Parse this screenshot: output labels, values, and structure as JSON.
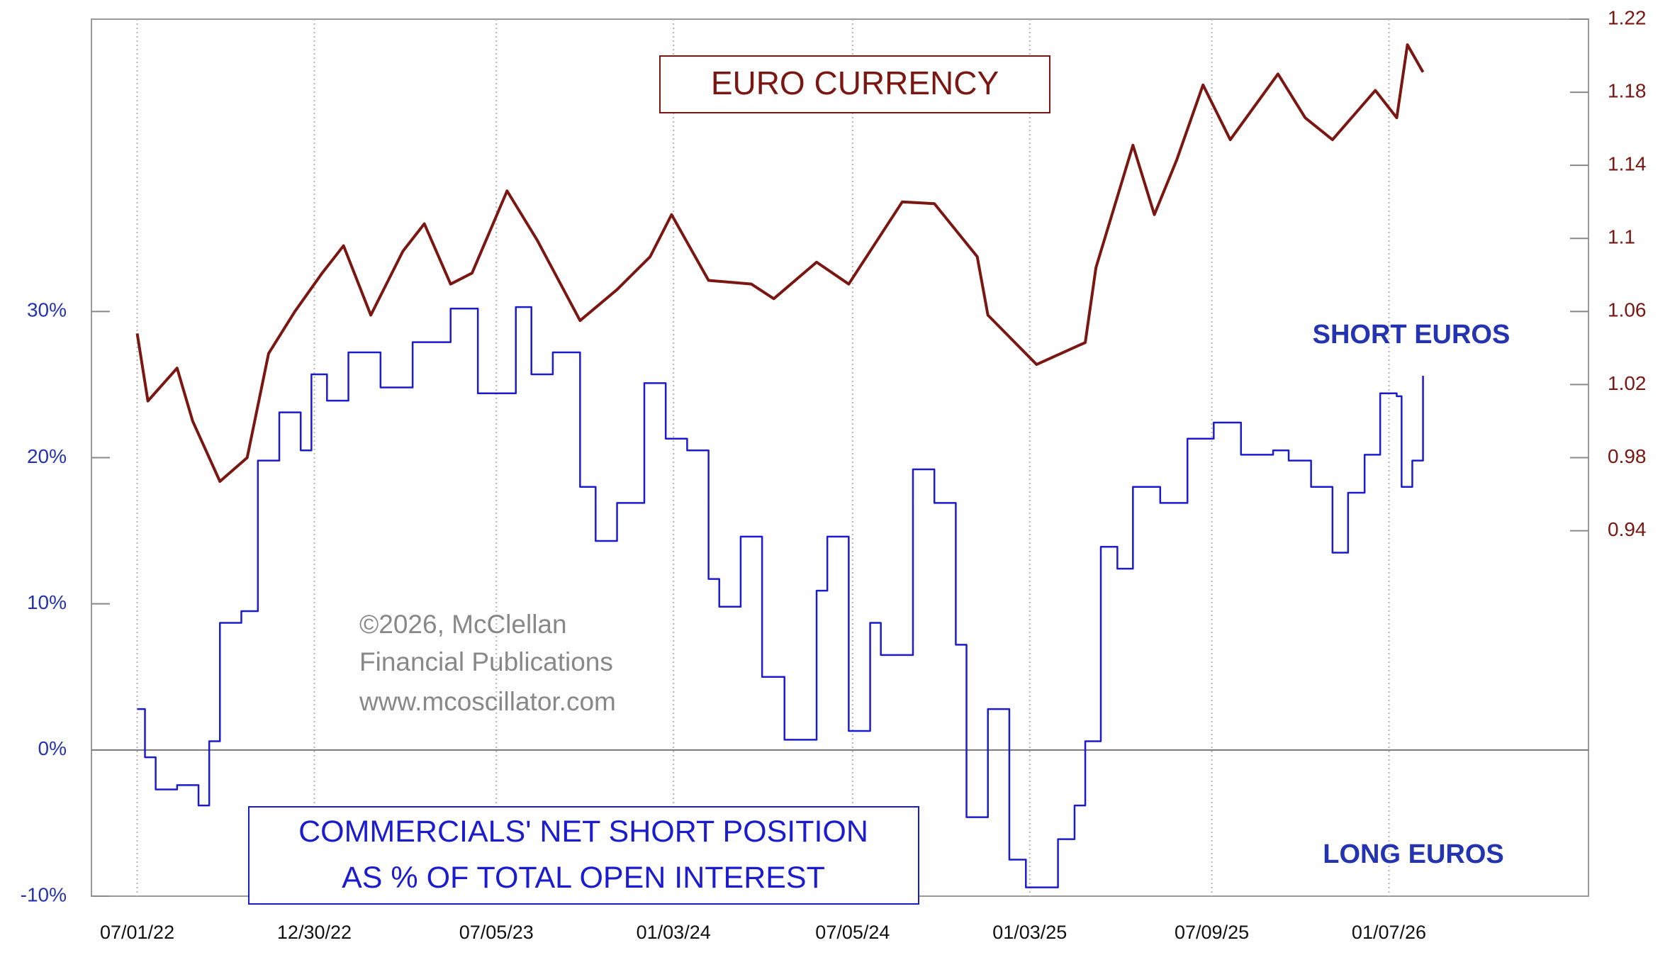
{
  "chart_data": {
    "type": "line",
    "xlim": [
      "2022-05-15",
      "2026-07-31"
    ],
    "xticks": [
      {
        "value": "2022-07-01",
        "label": "07/01/22"
      },
      {
        "value": "2022-12-30",
        "label": "12/30/22"
      },
      {
        "value": "2023-07-05",
        "label": "07/05/23"
      },
      {
        "value": "2024-01-03",
        "label": "01/03/24"
      },
      {
        "value": "2024-07-05",
        "label": "07/05/24"
      },
      {
        "value": "2025-01-03",
        "label": "01/03/25"
      },
      {
        "value": "2025-07-09",
        "label": "07/09/25"
      },
      {
        "value": "2026-01-07",
        "label": "01/07/26"
      }
    ],
    "ylim": [
      -10,
      50
    ],
    "yticks": [
      {
        "value": -10,
        "label": "-10%"
      },
      {
        "value": 0,
        "label": "0%"
      },
      {
        "value": 10,
        "label": "10%"
      },
      {
        "value": 20,
        "label": "20%"
      },
      {
        "value": 30,
        "label": "30%"
      }
    ],
    "y2lim": [
      0.74,
      1.22
    ],
    "y2ticks": [
      0.94,
      0.98,
      1.02,
      1.06,
      1.1,
      1.14,
      1.18,
      1.22
    ],
    "grid": true,
    "series": [
      {
        "name": "EURO CURRENCY",
        "color": "#7a1712",
        "axis": "y2",
        "x": [
          "2022-07-01",
          "2022-07-12",
          "2022-08-11",
          "2022-08-27",
          "2022-09-24",
          "2022-10-22",
          "2022-11-13",
          "2022-12-10",
          "2023-01-07",
          "2023-01-29",
          "2023-02-26",
          "2023-03-31",
          "2023-04-22",
          "2023-05-19",
          "2023-06-10",
          "2023-07-16",
          "2023-08-16",
          "2023-09-29",
          "2023-11-06",
          "2023-12-10",
          "2024-01-01",
          "2024-02-08",
          "2024-03-23",
          "2024-04-15",
          "2024-05-29",
          "2024-07-01",
          "2024-08-25",
          "2024-09-27",
          "2024-11-10",
          "2024-11-21",
          "2025-01-10",
          "2025-03-01",
          "2025-03-12",
          "2025-04-19",
          "2025-05-11",
          "2025-06-03",
          "2025-06-30",
          "2025-07-28",
          "2025-09-15",
          "2025-10-13",
          "2025-11-10",
          "2025-12-24",
          "2026-01-15",
          "2026-01-26",
          "2026-02-11"
        ],
        "values": [
          1.048,
          1.011,
          1.029,
          1.0,
          0.967,
          0.98,
          1.037,
          1.06,
          1.081,
          1.096,
          1.058,
          1.093,
          1.108,
          1.075,
          1.081,
          1.126,
          1.099,
          1.055,
          1.072,
          1.09,
          1.113,
          1.077,
          1.075,
          1.067,
          1.087,
          1.075,
          1.12,
          1.119,
          1.09,
          1.058,
          1.031,
          1.043,
          1.084,
          1.151,
          1.113,
          1.143,
          1.184,
          1.154,
          1.19,
          1.166,
          1.154,
          1.181,
          1.166,
          1.206,
          1.191
        ]
      },
      {
        "name": "COMMERCIALS' NET SHORT POSITION AS % OF TOTAL OPEN INTEREST",
        "color": "#1c1ccf",
        "axis": "y",
        "x": [
          "2022-07-01",
          "2022-07-09",
          "2022-07-20",
          "2022-08-11",
          "2022-09-02",
          "2022-09-13",
          "2022-09-24",
          "2022-10-16",
          "2022-11-02",
          "2022-11-24",
          "2022-12-16",
          "2022-12-27",
          "2023-01-12",
          "2023-02-03",
          "2023-03-08",
          "2023-04-10",
          "2023-05-19",
          "2023-06-16",
          "2023-07-25",
          "2023-08-10",
          "2023-09-01",
          "2023-09-29",
          "2023-10-15",
          "2023-11-06",
          "2023-12-04",
          "2023-12-26",
          "2024-01-17",
          "2024-02-08",
          "2024-02-19",
          "2024-03-12",
          "2024-04-03",
          "2024-04-26",
          "2024-05-29",
          "2024-06-09",
          "2024-07-01",
          "2024-07-23",
          "2024-08-03",
          "2024-09-05",
          "2024-09-27",
          "2024-10-19",
          "2024-10-30",
          "2024-11-21",
          "2024-12-13",
          "2024-12-30",
          "2025-02-01",
          "2025-02-18",
          "2025-03-01",
          "2025-03-17",
          "2025-04-03",
          "2025-04-19",
          "2025-05-17",
          "2025-06-14",
          "2025-07-11",
          "2025-08-08",
          "2025-09-10",
          "2025-09-26",
          "2025-10-19",
          "2025-11-10",
          "2025-11-26",
          "2025-12-13",
          "2025-12-29",
          "2026-01-15",
          "2026-01-20",
          "2026-01-31",
          "2026-02-11"
        ],
        "values": [
          2.8,
          -0.5,
          -2.7,
          -2.4,
          -3.8,
          0.6,
          8.7,
          9.5,
          19.8,
          23.1,
          20.5,
          25.7,
          23.9,
          27.2,
          24.8,
          27.9,
          30.2,
          24.4,
          30.3,
          25.7,
          27.2,
          18.0,
          14.3,
          16.9,
          25.1,
          21.3,
          20.5,
          11.7,
          9.8,
          14.6,
          5.0,
          0.7,
          10.9,
          14.6,
          1.3,
          8.7,
          6.5,
          19.2,
          16.9,
          7.2,
          -4.6,
          2.8,
          -7.5,
          -9.4,
          -6.1,
          -3.8,
          0.6,
          13.9,
          12.4,
          18.0,
          16.9,
          21.3,
          22.4,
          20.2,
          20.5,
          19.8,
          18.0,
          13.5,
          17.6,
          20.2,
          24.4,
          24.2,
          18.0,
          19.8,
          25.6
        ]
      }
    ],
    "annotations": [
      "SHORT EUROS",
      "LONG EUROS",
      "©2026, McClellan",
      "Financial Publications",
      "www.mcoscillator.com"
    ]
  }
}
